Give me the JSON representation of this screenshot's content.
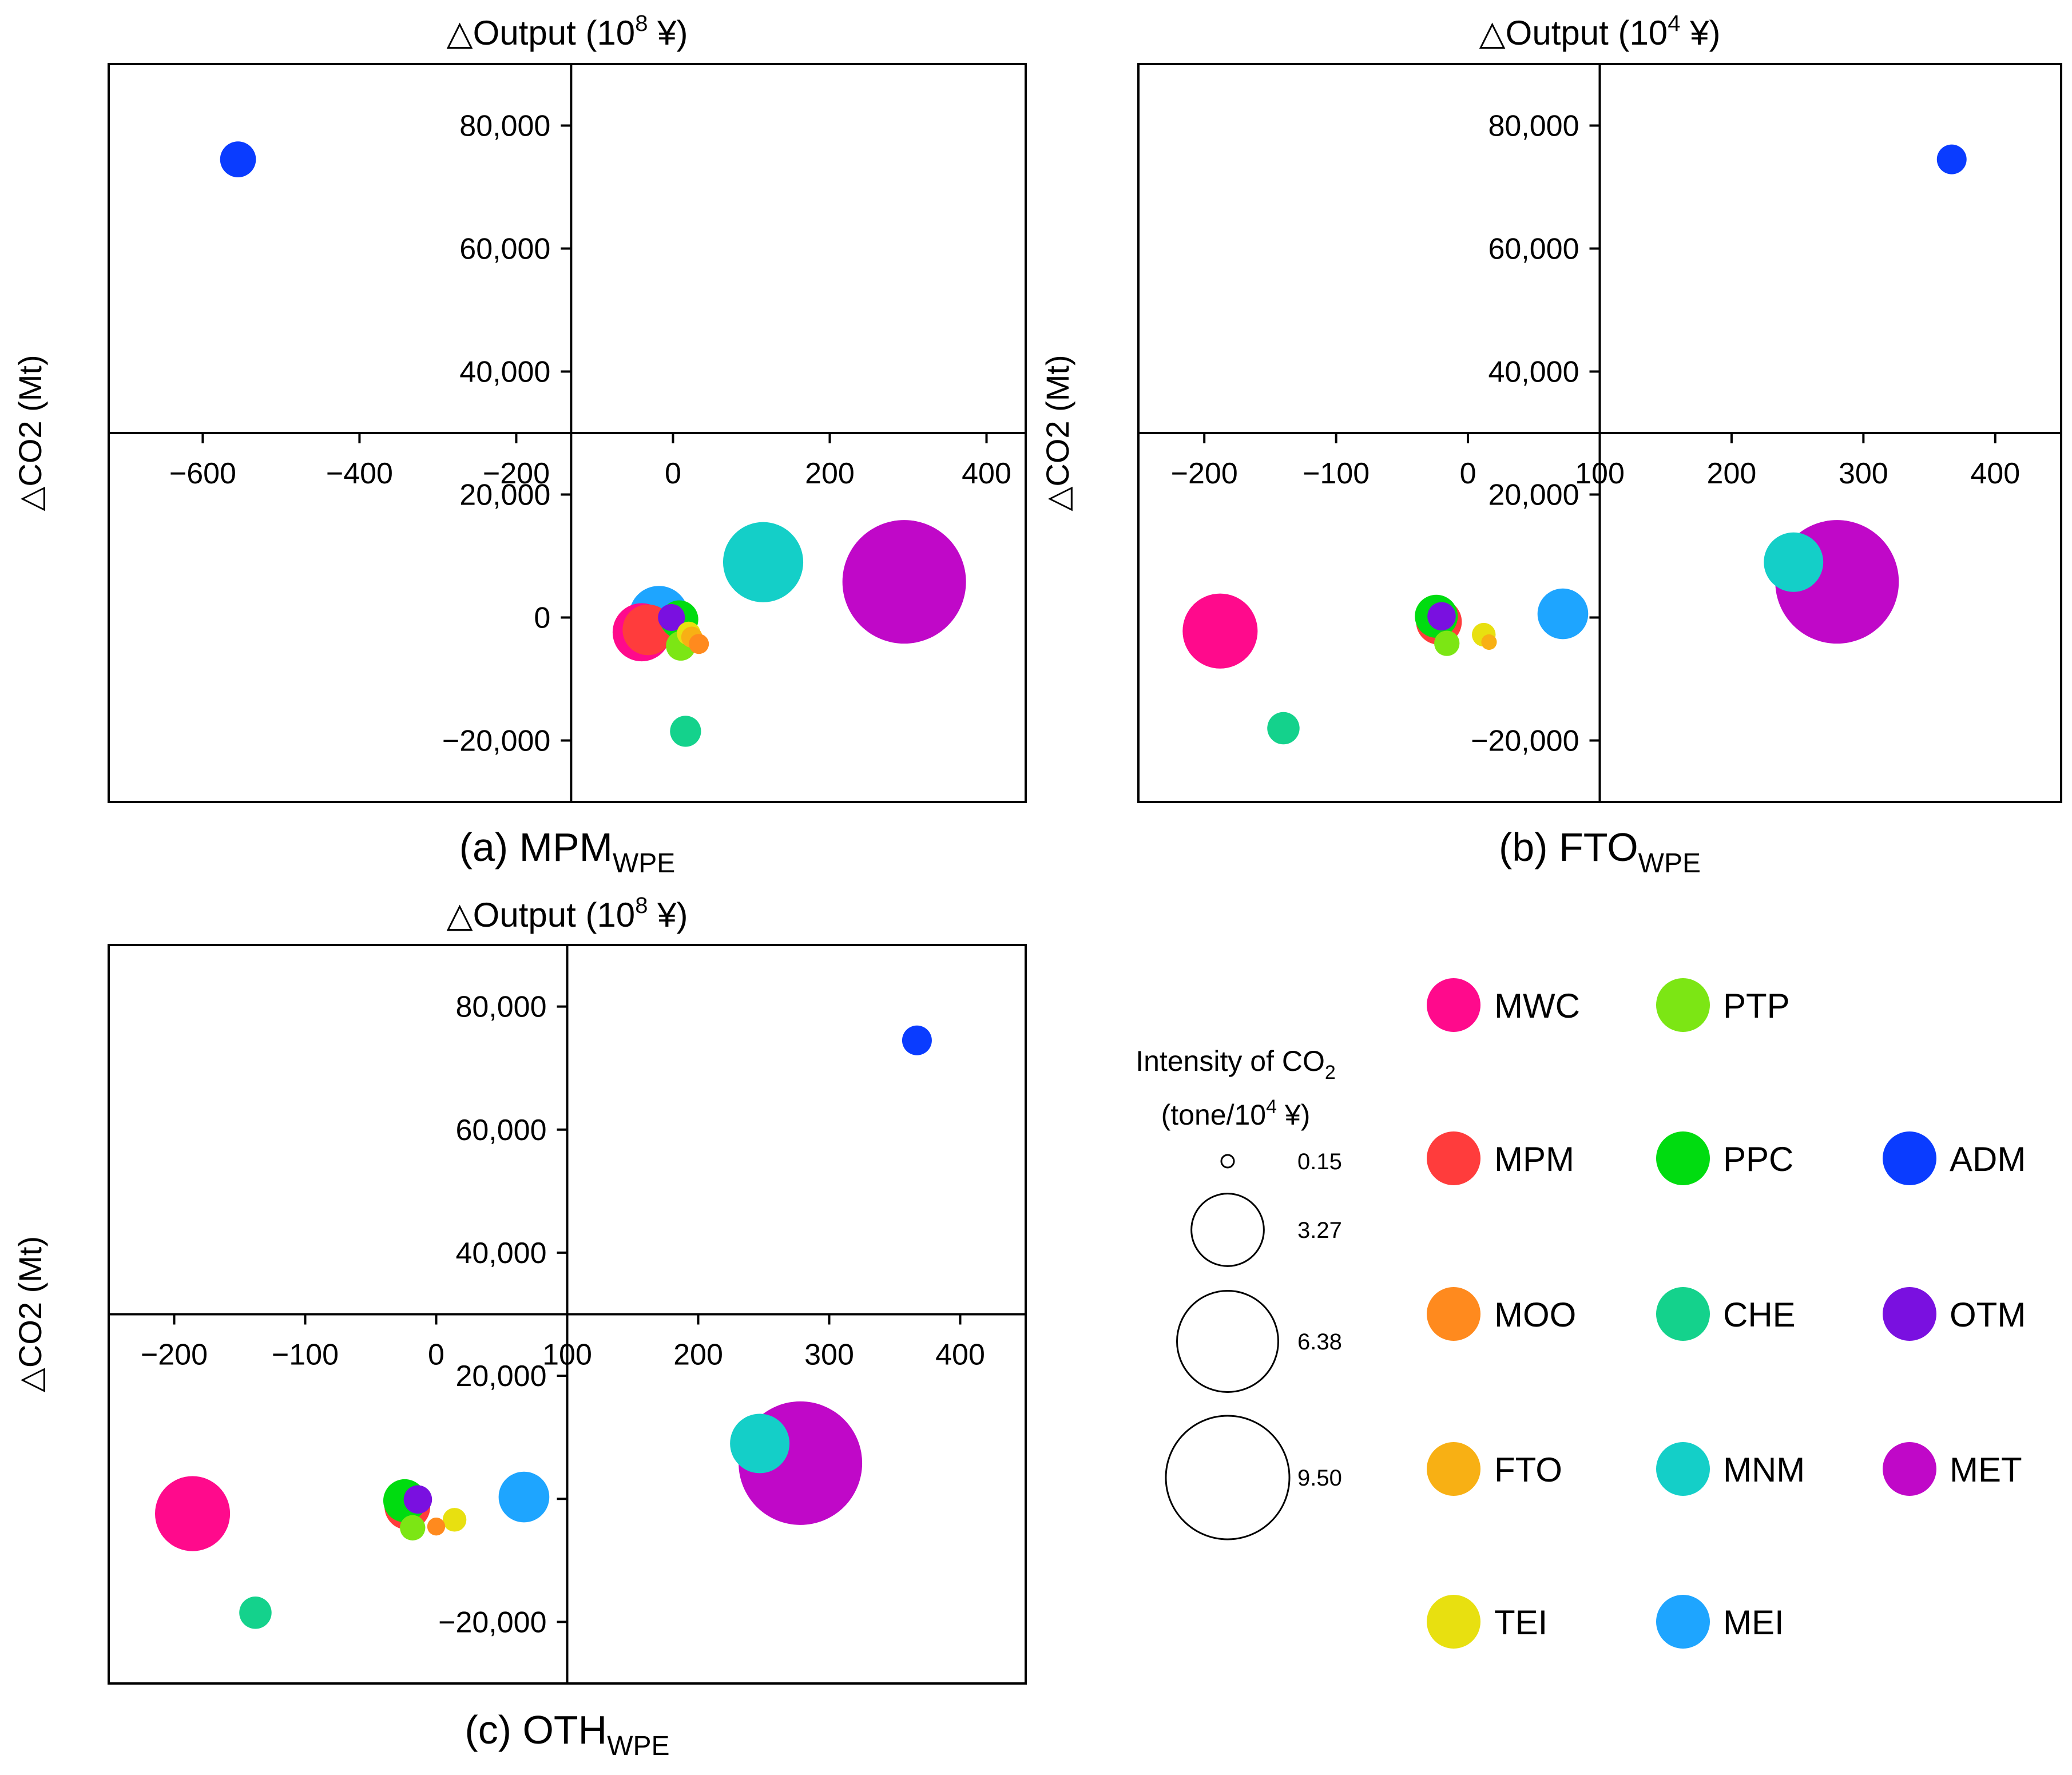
{
  "bubble_colors": {
    "MWC": "#ff0a8c",
    "MPM": "#ff3c3c",
    "MOO": "#ff8a1e",
    "FTO": "#f8b014",
    "TEI": "#e8e010",
    "PTP": "#7ce614",
    "PPC": "#00dc10",
    "CHE": "#14d28c",
    "MNM": "#14cfc8",
    "MEI": "#1ea5ff",
    "ADM": "#0a3cff",
    "OTM": "#7a10e0",
    "MET": "#c008c8"
  },
  "chart_data": [
    {
      "type": "scatter",
      "panel_label": "(a) MPM",
      "panel_sub": "WPE",
      "title_prefix": "△Output (10",
      "title_exp": "8",
      "title_suffix": " ¥)",
      "ylabel": "△CO2 (Mt)",
      "xlim": [
        -720,
        450
      ],
      "ylim": [
        -30000,
        90000
      ],
      "xticks": [
        -600,
        -400,
        -200,
        0,
        200,
        400
      ],
      "xtick_labels": [
        "−600",
        "−400",
        "−200",
        "0",
        "200",
        "400"
      ],
      "yticks": [
        -20000,
        0,
        20000,
        40000,
        60000,
        80000
      ],
      "ytick_labels": [
        "−20,000",
        "0",
        "20,000",
        "40,000",
        "60,000",
        "80,000"
      ],
      "axis_cross": {
        "x": -130,
        "y": 30000
      },
      "points": [
        {
          "sector": "ADM",
          "x": -555,
          "y": 74500,
          "intensity": 0.8
        },
        {
          "sector": "MET",
          "x": 295,
          "y": 5800,
          "intensity": 9.5
        },
        {
          "sector": "MNM",
          "x": 115,
          "y": 9000,
          "intensity": 4.0
        },
        {
          "sector": "MWC",
          "x": -40,
          "y": -2400,
          "intensity": 2.1
        },
        {
          "sector": "MPM",
          "x": -32,
          "y": -2000,
          "intensity": 1.6
        },
        {
          "sector": "MEI",
          "x": -18,
          "y": 300,
          "intensity": 2.2
        },
        {
          "sector": "PPC",
          "x": 8,
          "y": -300,
          "intensity": 0.9
        },
        {
          "sector": "OTM",
          "x": -2,
          "y": 0,
          "intensity": 0.45
        },
        {
          "sector": "TEI",
          "x": 20,
          "y": -2600,
          "intensity": 0.35
        },
        {
          "sector": "FTO",
          "x": 24,
          "y": -3200,
          "intensity": 0.28
        },
        {
          "sector": "MOO",
          "x": 33,
          "y": -4300,
          "intensity": 0.25
        },
        {
          "sector": "PTP",
          "x": 10,
          "y": -4600,
          "intensity": 0.55
        },
        {
          "sector": "CHE",
          "x": 16,
          "y": -18500,
          "intensity": 0.6
        }
      ]
    },
    {
      "type": "scatter",
      "panel_label": "(b) FTO",
      "panel_sub": "WPE",
      "title_prefix": "△Output (10",
      "title_exp": "4",
      "title_suffix": " ¥)",
      "ylabel": "△CO2 (Mt)",
      "xlim": [
        -250,
        450
      ],
      "ylim": [
        -30000,
        90000
      ],
      "xticks": [
        -200,
        -100,
        0,
        100,
        200,
        300,
        400
      ],
      "xtick_labels": [
        "−200",
        "−100",
        "0",
        "100",
        "200",
        "300",
        "400"
      ],
      "yticks": [
        -20000,
        0,
        20000,
        40000,
        60000,
        80000
      ],
      "ytick_labels": [
        "−20,000",
        "0",
        "20,000",
        "40,000",
        "60,000",
        "80,000"
      ],
      "axis_cross": {
        "x": 100,
        "y": 30000
      },
      "points": [
        {
          "sector": "ADM",
          "x": 367,
          "y": 74500,
          "intensity": 0.55
        },
        {
          "sector": "MNM",
          "x": 247,
          "y": 9000,
          "intensity": 2.2
        },
        {
          "sector": "MET",
          "x": 280,
          "y": 5800,
          "intensity": 9.5
        },
        {
          "sector": "MEI",
          "x": 72,
          "y": 600,
          "intensity": 1.6
        },
        {
          "sector": "MWC",
          "x": -188,
          "y": -2200,
          "intensity": 3.5
        },
        {
          "sector": "CHE",
          "x": -140,
          "y": -18000,
          "intensity": 0.65
        },
        {
          "sector": "MPM",
          "x": -22,
          "y": -700,
          "intensity": 1.3
        },
        {
          "sector": "PPC",
          "x": -24,
          "y": 200,
          "intensity": 1.15
        },
        {
          "sector": "OTM",
          "x": -20,
          "y": 200,
          "intensity": 0.5
        },
        {
          "sector": "PTP",
          "x": -16,
          "y": -4200,
          "intensity": 0.4
        },
        {
          "sector": "TEI",
          "x": 12,
          "y": -2800,
          "intensity": 0.35
        },
        {
          "sector": "FTO",
          "x": 16,
          "y": -4000,
          "intensity": 0.15
        }
      ]
    },
    {
      "type": "scatter",
      "panel_label": "(c) OTH",
      "panel_sub": "WPE",
      "title_prefix": "△Output (10",
      "title_exp": "8",
      "title_suffix": " ¥)",
      "ylabel": "△CO2 (Mt)",
      "xlim": [
        -250,
        450
      ],
      "ylim": [
        -30000,
        90000
      ],
      "xticks": [
        -200,
        -100,
        0,
        100,
        200,
        300,
        400
      ],
      "xtick_labels": [
        "−200",
        "−100",
        "0",
        "100",
        "200",
        "300",
        "400"
      ],
      "yticks": [
        -20000,
        0,
        20000,
        40000,
        60000,
        80000
      ],
      "ytick_labels": [
        "−20,000",
        "0",
        "20,000",
        "40,000",
        "60,000",
        "80,000"
      ],
      "axis_cross": {
        "x": 100,
        "y": 30000
      },
      "points": [
        {
          "sector": "ADM",
          "x": 367,
          "y": 74500,
          "intensity": 0.55
        },
        {
          "sector": "MNM",
          "x": 247,
          "y": 9000,
          "intensity": 2.2
        },
        {
          "sector": "MET",
          "x": 278,
          "y": 5800,
          "intensity": 9.5
        },
        {
          "sector": "MEI",
          "x": 67,
          "y": 300,
          "intensity": 1.6
        },
        {
          "sector": "MWC",
          "x": -186,
          "y": -2400,
          "intensity": 3.5
        },
        {
          "sector": "CHE",
          "x": -138,
          "y": -18500,
          "intensity": 0.65
        },
        {
          "sector": "MPM",
          "x": -22,
          "y": -1300,
          "intensity": 1.3
        },
        {
          "sector": "PPC",
          "x": -24,
          "y": -300,
          "intensity": 1.15
        },
        {
          "sector": "OTM",
          "x": -14,
          "y": -100,
          "intensity": 0.5
        },
        {
          "sector": "PTP",
          "x": -18,
          "y": -4700,
          "intensity": 0.4
        },
        {
          "sector": "MOO",
          "x": 0,
          "y": -4500,
          "intensity": 0.2
        },
        {
          "sector": "TEI",
          "x": 14,
          "y": -3400,
          "intensity": 0.35
        }
      ]
    }
  ],
  "size_legend": {
    "title_line1_prefix": "Intensity of CO",
    "title_line1_sub": "2",
    "title_line2_prefix": "(tone/10",
    "title_line2_exp": "4",
    "title_line2_suffix": " ¥)",
    "items": [
      {
        "value": 0.15,
        "label": "0.15"
      },
      {
        "value": 3.27,
        "label": "3.27"
      },
      {
        "value": 6.38,
        "label": "6.38"
      },
      {
        "value": 9.5,
        "label": "9.50"
      }
    ]
  },
  "color_legend": {
    "columns": [
      [
        "MWC",
        "MPM",
        "MOO",
        "FTO",
        "TEI"
      ],
      [
        "PTP",
        "PPC",
        "CHE",
        "MNM",
        "MEI"
      ],
      [
        "ADM",
        "OTM",
        "MET"
      ]
    ]
  }
}
